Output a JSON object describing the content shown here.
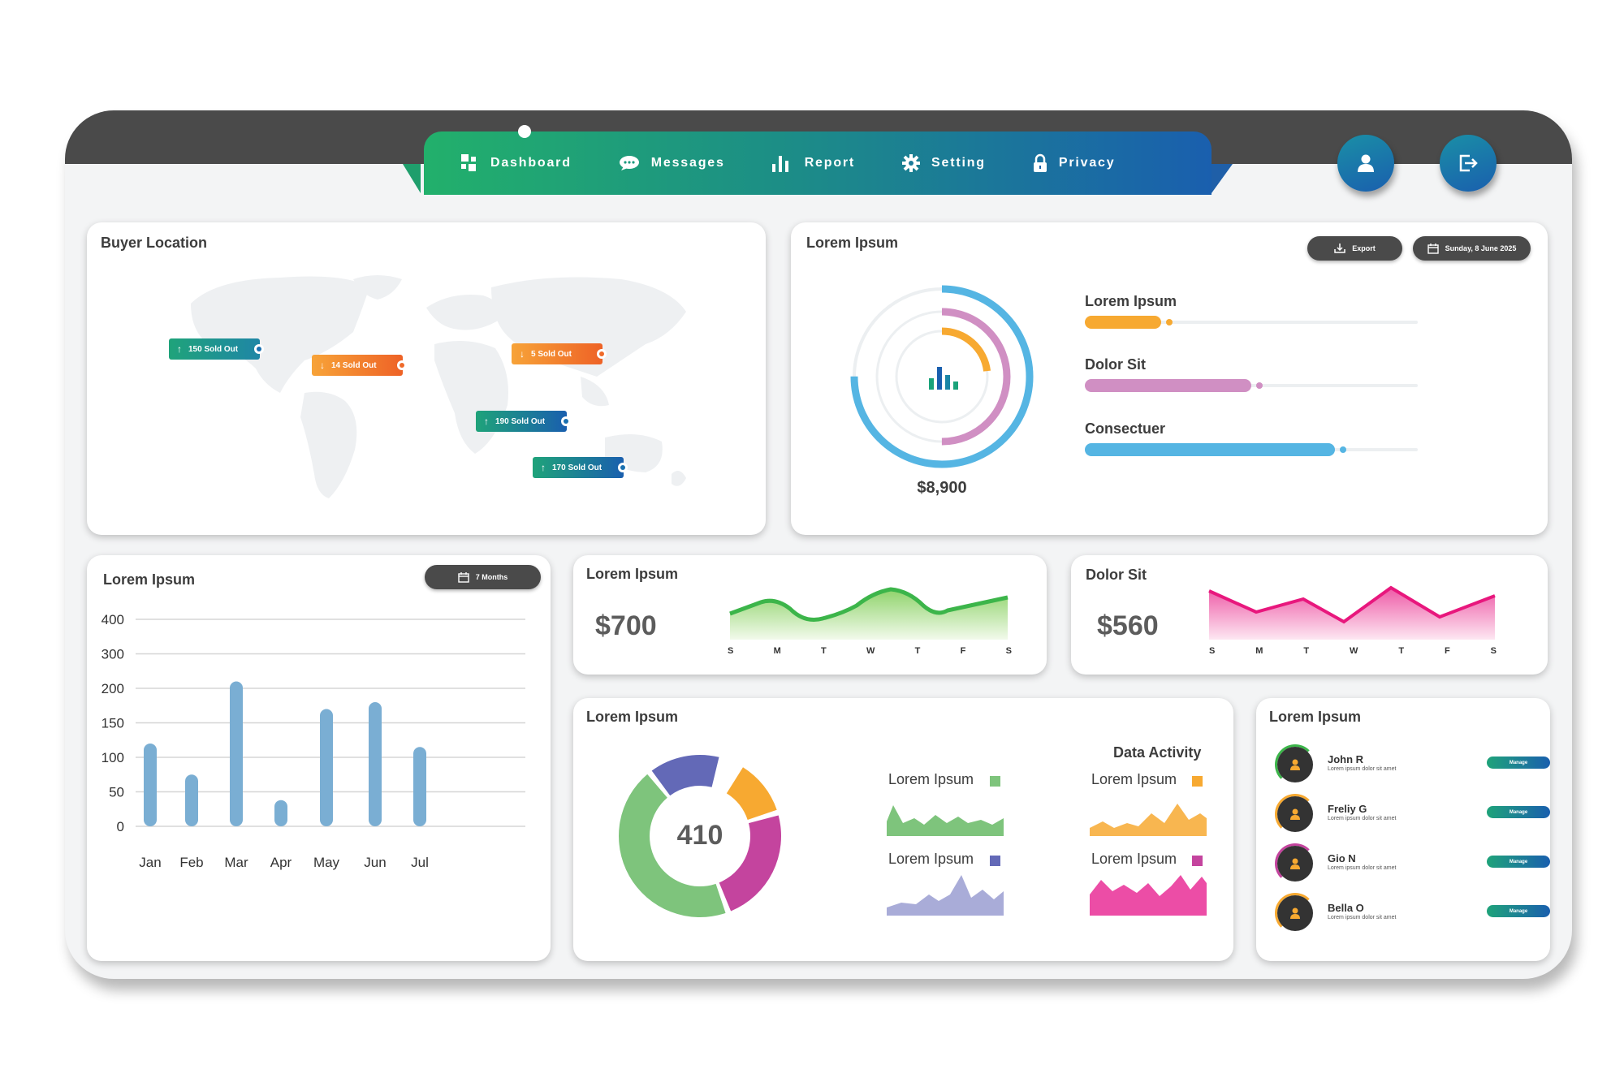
{
  "nav": {
    "items": [
      {
        "label": "Dashboard",
        "icon": "dashboard-icon"
      },
      {
        "label": "Messages",
        "icon": "chat-bubble-icon"
      },
      {
        "label": "Report",
        "icon": "bar-chart-icon"
      },
      {
        "label": "Setting",
        "icon": "gear-icon"
      },
      {
        "label": "Privacy",
        "icon": "lock-icon"
      }
    ],
    "profile_icon": "user-icon",
    "logout_icon": "logout-icon"
  },
  "buyer_location": {
    "title": "Buyer Location",
    "tags": [
      {
        "label": "150 Sold Out",
        "direction": "up"
      },
      {
        "label": "14 Sold Out",
        "direction": "down"
      },
      {
        "label": "5 Sold Out",
        "direction": "down"
      },
      {
        "label": "190 Sold Out",
        "direction": "up"
      },
      {
        "label": "170 Sold Out",
        "direction": "up"
      }
    ]
  },
  "overview": {
    "title": "Lorem Ipsum",
    "export_label": "Export",
    "date_label": "Sunday, 8 June 2025",
    "total": "$8,900",
    "bars": [
      {
        "label": "Lorem Ipsum",
        "fraction": 0.23,
        "color": "#f7a931"
      },
      {
        "label": "Dolor Sit",
        "fraction": 0.5,
        "color": "#d08fc3"
      },
      {
        "label": "Consectuer",
        "fraction": 0.75,
        "color": "#55b5e3"
      }
    ]
  },
  "monthly": {
    "title": "Lorem Ipsum",
    "range_label": "7 Months"
  },
  "sparkline_green": {
    "title": "Lorem Ipsum",
    "value": "$700",
    "days": [
      "S",
      "M",
      "T",
      "W",
      "T",
      "F",
      "S"
    ],
    "color": "#3cb54a"
  },
  "sparkline_pink": {
    "title": "Dolor Sit",
    "value": "$560",
    "days": [
      "S",
      "M",
      "T",
      "W",
      "T",
      "F",
      "S"
    ],
    "color": "#e8177d"
  },
  "activity": {
    "title": "Lorem Ipsum",
    "center_value": "410",
    "subtitle": "Data Activity",
    "donut": [
      {
        "fraction": 0.12,
        "color": "#f7a931"
      },
      {
        "fraction": 0.24,
        "color": "#c4449e"
      },
      {
        "fraction": 0.45,
        "color": "#7ec47c"
      },
      {
        "fraction": 0.15,
        "color": "#6369b7"
      }
    ],
    "minis": [
      {
        "label": "Lorem Ipsum",
        "color": "#7ec47c"
      },
      {
        "label": "Lorem Ipsum",
        "color": "#f7a931"
      },
      {
        "label": "Lorem Ipsum",
        "color": "#6369b7"
      },
      {
        "label": "Lorem Ipsum",
        "color": "#c4449e"
      }
    ]
  },
  "people": {
    "title": "Lorem Ipsum",
    "manage_label": "Manage",
    "list": [
      {
        "name": "John R",
        "desc": "Lorem ipsum dolor sit amet",
        "ring": "#3cb54a"
      },
      {
        "name": "Freliy G",
        "desc": "Lorem ipsum dolor sit amet",
        "ring": "#f7a931"
      },
      {
        "name": "Gio N",
        "desc": "Lorem ipsum dolor sit amet",
        "ring": "#c4449e"
      },
      {
        "name": "Bella O",
        "desc": "Lorem ipsum dolor sit amet",
        "ring": "#f7a931"
      }
    ]
  },
  "chart_data": {
    "type": "bar",
    "categories": [
      "Jan",
      "Feb",
      "Mar",
      "Apr",
      "May",
      "Jun",
      "Jul"
    ],
    "values": [
      120,
      75,
      220,
      38,
      170,
      180,
      115
    ],
    "y_ticks": [
      0,
      50,
      100,
      150,
      200,
      300,
      400
    ],
    "color": "#7aaed3",
    "grid": true
  }
}
